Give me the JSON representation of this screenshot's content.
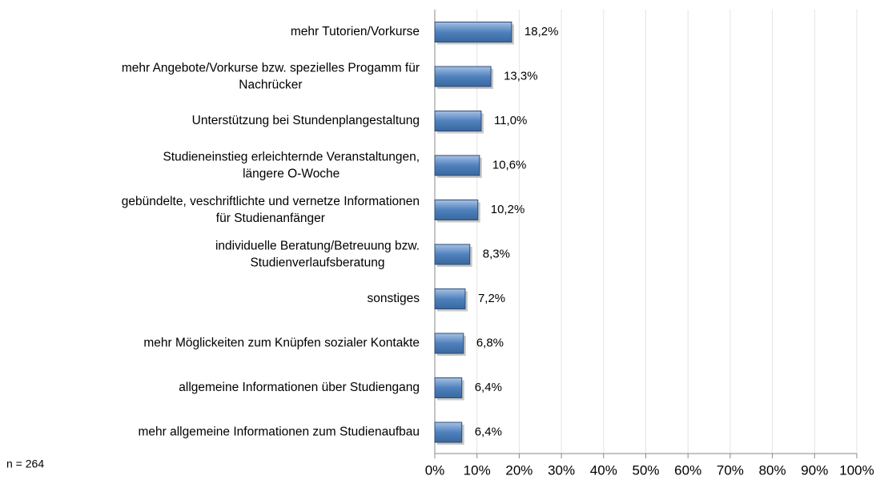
{
  "chart_data": {
    "type": "bar",
    "orientation": "horizontal",
    "categories": [
      "mehr Tutorien/Vorkurse",
      "mehr Angebote/Vorkurse bzw. spezielles Progamm für\nNachrücker",
      "Unterstützung bei Stundenplangestaltung",
      "Studieneinstieg erleichternde Veranstaltungen,\nlängere O-Woche",
      "gebündelte, veschriftlichte und vernetze Informationen\nfür Studienanfänger",
      "individuelle Beratung/Betreuung bzw.\nStudienverlaufsberatung",
      "sonstiges",
      "mehr Möglickeiten zum Knüpfen sozialer Kontakte",
      "allgemeine Informationen über Studiengang",
      "mehr allgemeine Informationen zum Studienaufbau"
    ],
    "values": [
      18.2,
      13.3,
      11.0,
      10.6,
      10.2,
      8.3,
      7.2,
      6.8,
      6.4,
      6.4
    ],
    "value_labels": [
      "18,2%",
      "13,3%",
      "11,0%",
      "10,6%",
      "10,2%",
      "8,3%",
      "7,2%",
      "6,8%",
      "6,4%",
      "6,4%"
    ],
    "color": "#4f81bd",
    "xlim": [
      0,
      100
    ],
    "xticks": [
      {
        "value": 0,
        "label": "0%"
      },
      {
        "value": 10,
        "label": "10%"
      },
      {
        "value": 20,
        "label": "20%"
      },
      {
        "value": 30,
        "label": "30%"
      },
      {
        "value": 40,
        "label": "40%"
      },
      {
        "value": 50,
        "label": "50%"
      },
      {
        "value": 60,
        "label": "60%"
      },
      {
        "value": 70,
        "label": "70%"
      },
      {
        "value": 80,
        "label": "80%"
      },
      {
        "value": 90,
        "label": "90%"
      },
      {
        "value": 100,
        "label": "100%"
      }
    ],
    "grid": true,
    "annotation": "n = 264"
  }
}
